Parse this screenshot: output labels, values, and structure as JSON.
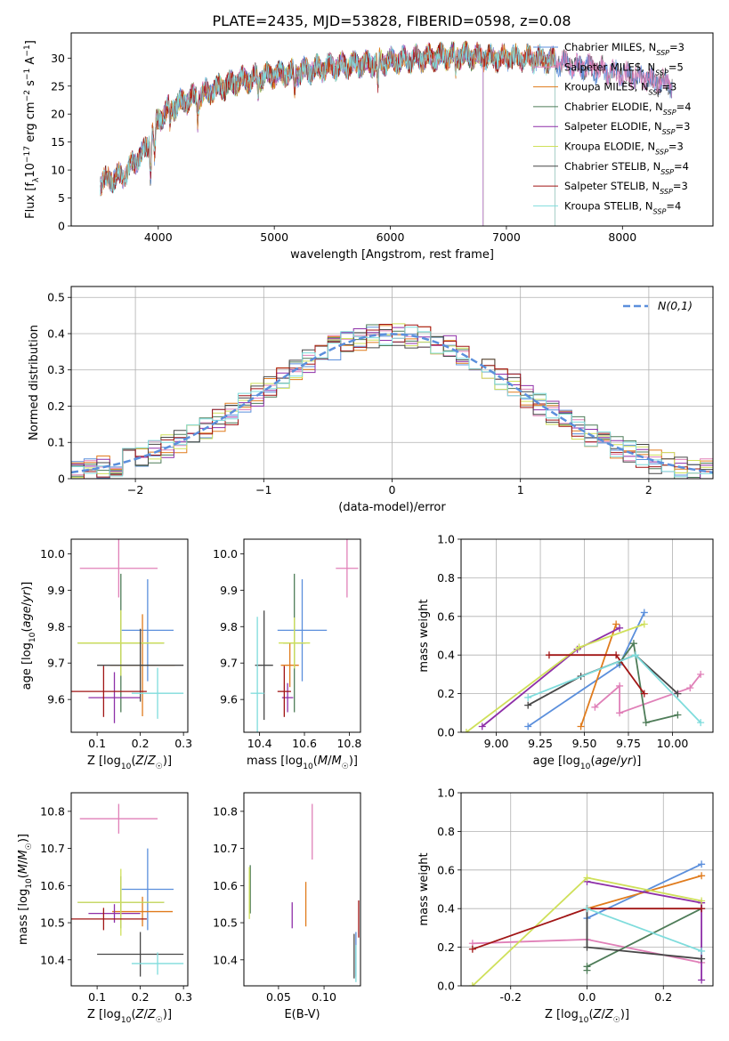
{
  "figure_title": "PLATE=2435, MJD=53828, FIBERID=0598, z=0.08",
  "colors": {
    "Chabrier MILES": "#5b8fdc",
    "Salpeter MILES": "#e080b8",
    "Kroupa MILES": "#e07b1c",
    "Chabrier ELODIE": "#4e7c58",
    "Salpeter ELODIE": "#8e2fa8",
    "Kroupa ELODIE": "#cfe05a",
    "Chabrier STELIB": "#474747",
    "Salpeter STELIB": "#a11515",
    "Kroupa STELIB": "#7fdcdc"
  },
  "chart_data": [
    {
      "id": "spectrum",
      "type": "line",
      "xlabel": "wavelength [Angstrom, rest frame]",
      "ylabel": "Flux [f_λ10^-17 erg cm^-2 s^-1 A^-1]",
      "xlim": [
        3250,
        8780
      ],
      "ylim": [
        0,
        34.5
      ],
      "xticks": [
        4000,
        5000,
        6000,
        7000,
        8000
      ],
      "yticks": [
        0,
        5,
        10,
        15,
        20,
        25,
        30
      ],
      "grid": false,
      "legend_position": "right",
      "legend": [
        {
          "label": "Chabrier MILES, N_SSP=3",
          "model": "Chabrier MILES"
        },
        {
          "label": "Salpeter MILES, N_SSP=5",
          "model": "Salpeter MILES"
        },
        {
          "label": "Kroupa MILES, N_SSP=3",
          "model": "Kroupa MILES"
        },
        {
          "label": "Chabrier ELODIE, N_SSP=4",
          "model": "Chabrier ELODIE"
        },
        {
          "label": "Salpeter ELODIE, N_SSP=3",
          "model": "Salpeter ELODIE"
        },
        {
          "label": "Kroupa ELODIE, N_SSP=3",
          "model": "Kroupa ELODIE"
        },
        {
          "label": "Chabrier STELIB, N_SSP=4",
          "model": "Chabrier STELIB"
        },
        {
          "label": "Salpeter STELIB, N_SSP=3",
          "model": "Salpeter STELIB"
        },
        {
          "label": "Kroupa STELIB, N_SSP=4",
          "model": "Kroupa STELIB"
        }
      ],
      "continuum": {
        "x": [
          3500,
          3700,
          3900,
          4000,
          4100,
          4300,
          4500,
          4700,
          5000,
          5200,
          5500,
          5800,
          6000,
          6300,
          6600,
          6900,
          7200,
          7400
        ],
        "y": [
          8,
          9,
          14,
          19,
          21,
          23,
          24.5,
          26,
          27,
          27.5,
          28.5,
          29,
          29.5,
          30,
          30.5,
          30,
          30,
          29.5
        ]
      },
      "ends": {
        "ELODIE_x": [
          3900,
          6800
        ],
        "STELIB_x": [
          3500,
          7420
        ],
        "MILES_x": [
          3500,
          8430
        ]
      }
    },
    {
      "id": "residuals",
      "type": "histogram",
      "xlabel": "(data-model)/error",
      "ylabel": "Normed distribution",
      "xlim": [
        -2.5,
        2.5
      ],
      "ylim": [
        0,
        0.53
      ],
      "xticks": [
        -2,
        -1,
        0,
        1,
        2
      ],
      "yticks": [
        0,
        0.1,
        0.2,
        0.3,
        0.4,
        0.5
      ],
      "grid": true,
      "legend_position": "top-right",
      "reference_label": "N(0,1)",
      "bin_width": 0.1
    },
    {
      "id": "Z_vs_age",
      "type": "errorbar",
      "xlabel": "Z [log10(Z/Z☉)]",
      "ylabel": "age  [log10(age/yr)]",
      "xlim": [
        0.04,
        0.31
      ],
      "ylim": [
        9.51,
        10.04
      ],
      "xticks": [
        0.1,
        0.2,
        0.3
      ],
      "yticks": [
        9.6,
        9.7,
        9.8,
        9.9,
        10.0
      ],
      "points": [
        {
          "model": "Chabrier MILES",
          "x": 0.217,
          "y": 9.79,
          "xerr": 0.06,
          "yerr": 0.14
        },
        {
          "model": "Salpeter MILES",
          "x": 0.15,
          "y": 9.96,
          "xerr": 0.09,
          "yerr": 0.08
        },
        {
          "model": "Kroupa MILES",
          "x": 0.205,
          "y": 9.694,
          "xerr": 0.075,
          "yerr": 0.14
        },
        {
          "model": "Chabrier ELODIE",
          "x": 0.155,
          "y": 9.755,
          "xerr": 0.1,
          "yerr": 0.19
        },
        {
          "model": "Salpeter ELODIE",
          "x": 0.14,
          "y": 9.605,
          "xerr": 0.06,
          "yerr": 0.07
        },
        {
          "model": "Kroupa ELODIE",
          "x": 0.155,
          "y": 9.755,
          "xerr": 0.1,
          "yerr": 0.09
        },
        {
          "model": "Chabrier STELIB",
          "x": 0.2,
          "y": 9.694,
          "xerr": 0.1,
          "yerr": 0.1
        },
        {
          "model": "Salpeter STELIB",
          "x": 0.115,
          "y": 9.622,
          "xerr": 0.1,
          "yerr": 0.07
        },
        {
          "model": "Kroupa STELIB",
          "x": 0.24,
          "y": 9.617,
          "xerr": 0.06,
          "yerr": 0.07
        }
      ]
    },
    {
      "id": "mass_vs_age",
      "type": "errorbar",
      "xlabel": "mass [log10(M/M☉)]",
      "ylabel": "",
      "xlim": [
        10.33,
        10.85
      ],
      "ylim": [
        9.51,
        10.04
      ],
      "xticks": [
        10.4,
        10.6,
        10.8
      ],
      "yticks": [
        9.6,
        9.7,
        9.8,
        9.9,
        10.0
      ],
      "points": [
        {
          "model": "Chabrier MILES",
          "x": 10.59,
          "y": 9.79,
          "xerr": 0.11,
          "yerr": 0.14
        },
        {
          "model": "Salpeter MILES",
          "x": 10.79,
          "y": 9.96,
          "xerr": 0.05,
          "yerr": 0.08
        },
        {
          "model": "Kroupa MILES",
          "x": 10.535,
          "y": 9.694,
          "xerr": 0.04,
          "yerr": 0.06
        },
        {
          "model": "Chabrier ELODIE",
          "x": 10.555,
          "y": 9.755,
          "xerr": 0.05,
          "yerr": 0.19
        },
        {
          "model": "Salpeter ELODIE",
          "x": 10.525,
          "y": 9.605,
          "xerr": 0.025,
          "yerr": 0.04
        },
        {
          "model": "Kroupa ELODIE",
          "x": 10.555,
          "y": 9.755,
          "xerr": 0.07,
          "yerr": 0.07
        },
        {
          "model": "Chabrier STELIB",
          "x": 10.42,
          "y": 9.694,
          "xerr": 0.04,
          "yerr": 0.15
        },
        {
          "model": "Salpeter STELIB",
          "x": 10.51,
          "y": 9.622,
          "xerr": 0.03,
          "yerr": 0.07
        },
        {
          "model": "Kroupa STELIB",
          "x": 10.39,
          "y": 9.617,
          "xerr": 0.03,
          "yerr": 0.21
        }
      ]
    },
    {
      "id": "age_vs_weight",
      "type": "line",
      "xlabel": "age  [log10(age/yr)]",
      "ylabel": "mass weight",
      "xlim": [
        8.8,
        10.23
      ],
      "ylim": [
        0,
        1.0
      ],
      "xticks": [
        9.0,
        9.25,
        9.5,
        9.75,
        10.0
      ],
      "yticks": [
        0,
        0.2,
        0.4,
        0.6,
        0.8,
        1.0
      ],
      "grid": true,
      "series": [
        {
          "model": "Chabrier MILES",
          "x": [
            9.18,
            9.7,
            9.84
          ],
          "y": [
            0.03,
            0.35,
            0.62
          ]
        },
        {
          "model": "Salpeter MILES",
          "x": [
            9.56,
            9.7,
            9.7,
            10.1,
            10.16
          ],
          "y": [
            0.13,
            0.24,
            0.1,
            0.23,
            0.3
          ]
        },
        {
          "model": "Kroupa MILES",
          "x": [
            9.48,
            9.68
          ],
          "y": [
            0.03,
            0.56
          ]
        },
        {
          "model": "Chabrier ELODIE",
          "x": [
            9.7,
            9.78,
            9.85,
            10.03
          ],
          "y": [
            0.36,
            0.46,
            0.05,
            0.09
          ]
        },
        {
          "model": "Salpeter ELODIE",
          "x": [
            8.92,
            9.46,
            9.7
          ],
          "y": [
            0.03,
            0.43,
            0.54
          ]
        },
        {
          "model": "Kroupa ELODIE",
          "x": [
            8.83,
            9.47,
            9.84
          ],
          "y": [
            0.0,
            0.44,
            0.56
          ]
        },
        {
          "model": "Chabrier STELIB",
          "x": [
            9.18,
            9.48,
            9.79,
            10.03
          ],
          "y": [
            0.14,
            0.29,
            0.4,
            0.2
          ]
        },
        {
          "model": "Salpeter STELIB",
          "x": [
            9.3,
            9.68,
            9.84
          ],
          "y": [
            0.4,
            0.4,
            0.2
          ]
        },
        {
          "model": "Kroupa STELIB",
          "x": [
            9.18,
            9.79,
            10.16
          ],
          "y": [
            0.18,
            0.4,
            0.05
          ]
        }
      ]
    },
    {
      "id": "Z_vs_mass",
      "type": "errorbar",
      "xlabel": "Z [log10(Z/Z☉)]",
      "ylabel": "mass [log10(M/M☉)]",
      "xlim": [
        0.04,
        0.31
      ],
      "ylim": [
        10.33,
        10.85
      ],
      "xticks": [
        0.1,
        0.2,
        0.3
      ],
      "yticks": [
        10.4,
        10.5,
        10.6,
        10.7,
        10.8
      ],
      "points": [
        {
          "model": "Chabrier MILES",
          "x": 0.217,
          "y": 10.59,
          "xerr": 0.06,
          "yerr": 0.11
        },
        {
          "model": "Salpeter MILES",
          "x": 0.15,
          "y": 10.78,
          "xerr": 0.09,
          "yerr": 0.04
        },
        {
          "model": "Kroupa MILES",
          "x": 0.205,
          "y": 10.53,
          "xerr": 0.07,
          "yerr": 0.04
        },
        {
          "model": "Chabrier ELODIE",
          "x": 0.155,
          "y": 10.555,
          "xerr": 0.1,
          "yerr": 0.07
        },
        {
          "model": "Salpeter ELODIE",
          "x": 0.14,
          "y": 10.525,
          "xerr": 0.06,
          "yerr": 0.025
        },
        {
          "model": "Kroupa ELODIE",
          "x": 0.155,
          "y": 10.555,
          "xerr": 0.1,
          "yerr": 0.09
        },
        {
          "model": "Chabrier STELIB",
          "x": 0.2,
          "y": 10.415,
          "xerr": 0.1,
          "yerr": 0.06
        },
        {
          "model": "Salpeter STELIB",
          "x": 0.115,
          "y": 10.51,
          "xerr": 0.1,
          "yerr": 0.03
        },
        {
          "model": "Kroupa STELIB",
          "x": 0.24,
          "y": 10.39,
          "xerr": 0.06,
          "yerr": 0.03
        }
      ]
    },
    {
      "id": "ebv_vs_mass",
      "type": "errorbar",
      "xlabel": "E(B-V)",
      "ylabel": "",
      "xlim": [
        0.012,
        0.14
      ],
      "ylim": [
        10.33,
        10.85
      ],
      "xticks": [
        0.05,
        0.1
      ],
      "yticks": [
        10.4,
        10.5,
        10.6,
        10.7,
        10.8
      ],
      "points": [
        {
          "model": "Chabrier MILES",
          "x": 0.135,
          "y": 10.415,
          "xerr": 0,
          "yerr": 0.06
        },
        {
          "model": "Salpeter MILES",
          "x": 0.087,
          "y": 10.745,
          "xerr": 0,
          "yerr": 0.075
        },
        {
          "model": "Kroupa MILES",
          "x": 0.08,
          "y": 10.55,
          "xerr": 0,
          "yerr": 0.06
        },
        {
          "model": "Chabrier ELODIE",
          "x": 0.019,
          "y": 10.59,
          "xerr": 0,
          "yerr": 0.065
        },
        {
          "model": "Salpeter ELODIE",
          "x": 0.065,
          "y": 10.52,
          "xerr": 0,
          "yerr": 0.035
        },
        {
          "model": "Kroupa ELODIE",
          "x": 0.018,
          "y": 10.58,
          "xerr": 0,
          "yerr": 0.07
        },
        {
          "model": "Chabrier STELIB",
          "x": 0.133,
          "y": 10.41,
          "xerr": 0,
          "yerr": 0.06
        },
        {
          "model": "Salpeter STELIB",
          "x": 0.138,
          "y": 10.51,
          "xerr": 0,
          "yerr": 0.05
        },
        {
          "model": "Kroupa STELIB",
          "x": 0.135,
          "y": 10.39,
          "xerr": 0,
          "yerr": 0.05
        }
      ]
    },
    {
      "id": "Z_vs_weight",
      "type": "line",
      "xlabel": "Z [log10(Z/Z☉)]",
      "ylabel": "mass weight",
      "xlim": [
        -0.33,
        0.33
      ],
      "ylim": [
        0,
        1.0
      ],
      "xticks": [
        -0.2,
        0.0,
        0.2
      ],
      "yticks": [
        0,
        0.2,
        0.4,
        0.6,
        0.8,
        1.0
      ],
      "grid": true,
      "series": [
        {
          "model": "Chabrier MILES",
          "x": [
            0.0,
            0.3
          ],
          "y": [
            0.35,
            0.63
          ]
        },
        {
          "model": "Salpeter MILES",
          "x": [
            -0.3,
            0.0,
            0.3
          ],
          "y": [
            0.22,
            0.24,
            0.12
          ]
        },
        {
          "model": "Kroupa MILES",
          "x": [
            0.0,
            0.3
          ],
          "y": [
            0.4,
            0.57
          ]
        },
        {
          "model": "Chabrier ELODIE",
          "x": [
            0.0,
            0.0,
            0.3
          ],
          "y": [
            0.08,
            0.1,
            0.4
          ]
        },
        {
          "model": "Salpeter ELODIE",
          "x": [
            0.0,
            0.3,
            0.3
          ],
          "y": [
            0.54,
            0.43,
            0.03
          ]
        },
        {
          "model": "Kroupa ELODIE",
          "x": [
            -0.3,
            0.0,
            0.3
          ],
          "y": [
            0.0,
            0.56,
            0.44
          ]
        },
        {
          "model": "Chabrier STELIB",
          "x": [
            0.0,
            0.0,
            0.3
          ],
          "y": [
            0.4,
            0.2,
            0.14
          ]
        },
        {
          "model": "Salpeter STELIB",
          "x": [
            -0.3,
            0.0,
            0.3
          ],
          "y": [
            0.19,
            0.4,
            0.4
          ]
        },
        {
          "model": "Kroupa STELIB",
          "x": [
            0.0,
            0.3
          ],
          "y": [
            0.4,
            0.18
          ]
        }
      ]
    }
  ]
}
